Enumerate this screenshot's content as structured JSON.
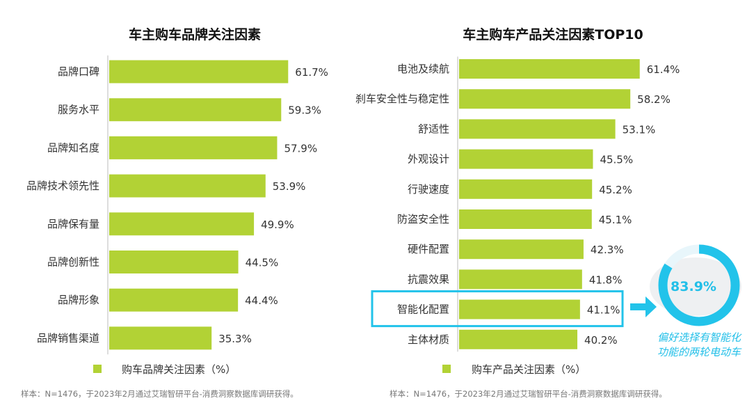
{
  "chart_data": [
    {
      "type": "bar",
      "orientation": "horizontal",
      "title": "车主购车品牌关注因素",
      "categories": [
        "品牌口碑",
        "服务水平",
        "品牌知名度",
        "品牌技术领先性",
        "品牌保有量",
        "品牌创新性",
        "品牌形象",
        "品牌销售渠道"
      ],
      "series": [
        {
          "name": "购车品牌关注因素（%）",
          "values": [
            61.7,
            59.3,
            57.9,
            53.9,
            49.9,
            44.5,
            44.4,
            35.3
          ]
        }
      ],
      "value_labels": [
        "61.7%",
        "59.3%",
        "57.9%",
        "53.9%",
        "49.9%",
        "44.5%",
        "44.4%",
        "35.3%"
      ],
      "legend": "bottom",
      "grid": false,
      "note": "样本：N=1476，于2023年2月通过艾瑞智研平台-消费洞察数据库调研获得。"
    },
    {
      "type": "bar",
      "orientation": "horizontal",
      "title": "车主购车产品关注因素TOP10",
      "categories": [
        "电池及续航",
        "刹车安全性与稳定性",
        "舒适性",
        "外观设计",
        "行驶速度",
        "防盗安全性",
        "硬件配置",
        "抗震效果",
        "智能化配置",
        "主体材质"
      ],
      "series": [
        {
          "name": "购车产品关注因素（%）",
          "values": [
            61.4,
            58.2,
            53.1,
            45.5,
            45.2,
            45.1,
            42.3,
            41.8,
            41.1,
            40.2
          ]
        }
      ],
      "value_labels": [
        "61.4%",
        "58.2%",
        "53.1%",
        "45.5%",
        "45.2%",
        "45.1%",
        "42.3%",
        "41.8%",
        "41.1%",
        "40.2%"
      ],
      "highlighted_category": "智能化配置",
      "legend": "bottom",
      "grid": false,
      "note": "样本：N=1476，于2023年2月通过艾瑞智研平台-消费洞察数据库调研获得。",
      "callout": {
        "value": 83.9,
        "label": "83.9%",
        "text_line1": "偏好选择有智能化",
        "text_line2": "功能的两轮电动车"
      }
    }
  ],
  "colors": {
    "bar": "#b2d235",
    "accent": "#22c3ea"
  }
}
